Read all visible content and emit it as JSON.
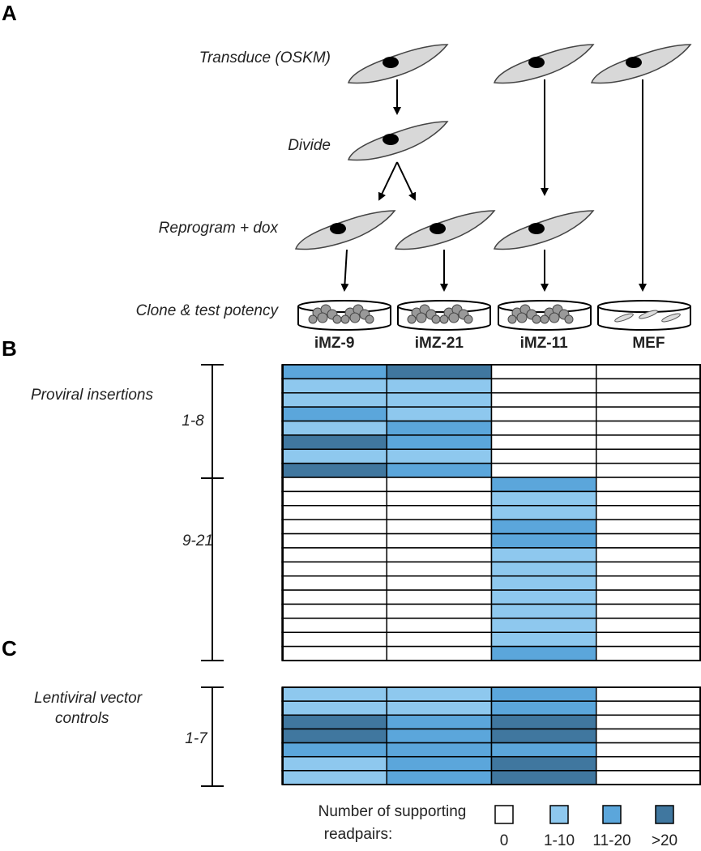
{
  "panel_labels": [
    "A",
    "B",
    "C"
  ],
  "steps": [
    "Transduce (OSKM)",
    "Divide",
    "Reprogram + dox",
    "Clone & test potency"
  ],
  "columns": [
    "iMZ-9",
    "iMZ-21",
    "iMZ-11",
    "MEF"
  ],
  "proviral": {
    "title": "Proviral insertions",
    "groups": [
      "1-8",
      "9-21"
    ],
    "rows": [
      [
        2,
        3,
        0,
        0
      ],
      [
        1,
        1,
        0,
        0
      ],
      [
        1,
        1,
        0,
        0
      ],
      [
        2,
        1,
        0,
        0
      ],
      [
        1,
        2,
        0,
        0
      ],
      [
        3,
        2,
        0,
        0
      ],
      [
        1,
        1,
        0,
        0
      ],
      [
        3,
        2,
        0,
        0
      ],
      [
        0,
        0,
        2,
        0
      ],
      [
        0,
        0,
        1,
        0
      ],
      [
        0,
        0,
        1,
        0
      ],
      [
        0,
        0,
        2,
        0
      ],
      [
        0,
        0,
        2,
        0
      ],
      [
        0,
        0,
        1,
        0
      ],
      [
        0,
        0,
        1,
        0
      ],
      [
        0,
        0,
        1,
        0
      ],
      [
        0,
        0,
        1,
        0
      ],
      [
        0,
        0,
        1,
        0
      ],
      [
        0,
        0,
        1,
        0
      ],
      [
        0,
        0,
        1,
        0
      ],
      [
        0,
        0,
        2,
        0
      ]
    ]
  },
  "controls": {
    "title": [
      "Lentiviral vector",
      "controls"
    ],
    "group": "1-7",
    "rows": [
      [
        1,
        1,
        2,
        0
      ],
      [
        1,
        1,
        2,
        0
      ],
      [
        3,
        2,
        3,
        0
      ],
      [
        3,
        2,
        3,
        0
      ],
      [
        2,
        2,
        2,
        0
      ],
      [
        1,
        2,
        3,
        0
      ],
      [
        1,
        2,
        3,
        0
      ]
    ]
  },
  "legend": {
    "title": [
      "Number of supporting",
      "readpairs:"
    ],
    "levels": [
      {
        "label": "0",
        "color": "#ffffff"
      },
      {
        "label": "1-10",
        "color": "#8ec8ee"
      },
      {
        "label": "11-20",
        "color": "#5ba6db"
      },
      {
        "label": ">20",
        "color": "#40779f"
      }
    ]
  }
}
